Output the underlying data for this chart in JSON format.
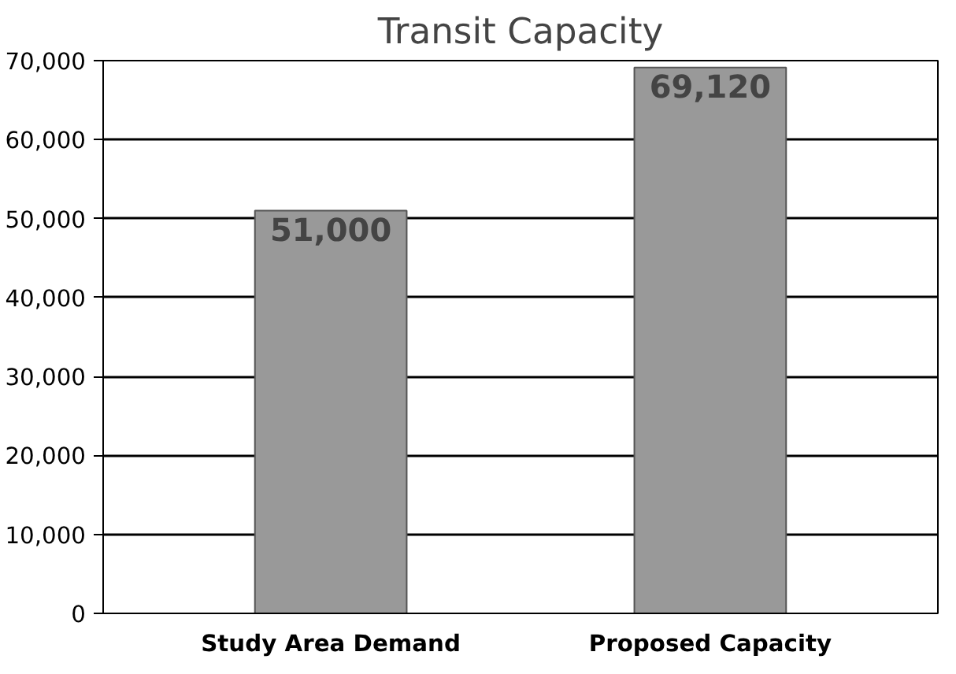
{
  "chart_data": {
    "type": "bar",
    "title": "Transit Capacity",
    "categories": [
      "Study Area Demand",
      "Proposed Capacity"
    ],
    "values": [
      51000,
      69120
    ],
    "color": "#999999",
    "ylim": [
      0,
      70000
    ],
    "yticks": [
      {
        "value": 0,
        "label": "0"
      },
      {
        "value": 10000,
        "label": "10,000"
      },
      {
        "value": 20000,
        "label": "20,000"
      },
      {
        "value": 30000,
        "label": "30,000"
      },
      {
        "value": 40000,
        "label": "40,000"
      },
      {
        "value": 50000,
        "label": "50,000"
      },
      {
        "value": 60000,
        "label": "60,000"
      },
      {
        "value": 70000,
        "label": "70,000"
      }
    ],
    "value_labels": [
      "51,000",
      "69,120"
    ],
    "grid": "y"
  }
}
